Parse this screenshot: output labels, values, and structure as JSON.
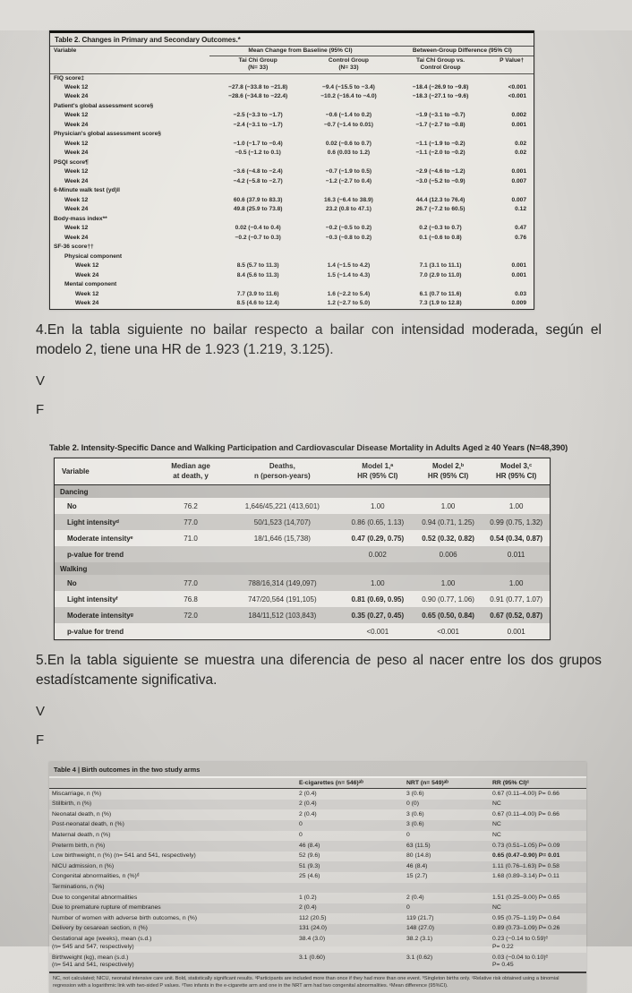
{
  "colors": {
    "paper": "#d6d4d0",
    "table_bg": "#e9e7e2",
    "band_gray": "#c9c7c3",
    "ink": "#23221f"
  },
  "table1": {
    "title": "Table 2. Changes in Primary and Secondary Outcomes.*",
    "col_headers": {
      "variable": "Variable",
      "group1": "Mean Change from Baseline (95% CI)",
      "group2": "Between-Group Difference (95% CI)",
      "tai_chi": "Tai Chi Group\n(N= 33)",
      "control": "Control Group\n(N= 33)",
      "diff": "Tai Chi Group vs.\nControl Group",
      "p": "P Value†"
    },
    "rows": [
      {
        "label": "FIQ score‡",
        "indent": 0
      },
      {
        "label": "Week 12",
        "indent": 1,
        "tc": "−27.8 (−33.8 to −21.8)",
        "ctrl": "−9.4 (−15.5 to −3.4)",
        "diff": "−18.4 (−26.9 to −9.8)",
        "p": "<0.001"
      },
      {
        "label": "Week 24",
        "indent": 1,
        "tc": "−28.6 (−34.8 to −22.4)",
        "ctrl": "−10.2 (−16.4 to −4.0)",
        "diff": "−18.3 (−27.1 to −9.6)",
        "p": "<0.001"
      },
      {
        "label": "Patient's global assessment score§",
        "indent": 0
      },
      {
        "label": "Week 12",
        "indent": 1,
        "tc": "−2.5 (−3.3 to −1.7)",
        "ctrl": "−0.6 (−1.4 to 0.2)",
        "diff": "−1.9 (−3.1 to −0.7)",
        "p": "0.002"
      },
      {
        "label": "Week 24",
        "indent": 1,
        "tc": "−2.4 (−3.1 to −1.7)",
        "ctrl": "−0.7 (−1.4 to 0.01)",
        "diff": "−1.7 (−2.7 to −0.8)",
        "p": "0.001"
      },
      {
        "label": "Physician's global assessment score§",
        "indent": 0
      },
      {
        "label": "Week 12",
        "indent": 1,
        "tc": "−1.0 (−1.7 to −0.4)",
        "ctrl": "0.02 (−0.6 to 0.7)",
        "diff": "−1.1 (−1.9 to −0.2)",
        "p": "0.02"
      },
      {
        "label": "Week 24",
        "indent": 1,
        "tc": "−0.5 (−1.2 to 0.1)",
        "ctrl": "0.6 (0.03 to 1.2)",
        "diff": "−1.1 (−2.0 to −0.2)",
        "p": "0.02"
      },
      {
        "label": "PSQI score¶",
        "indent": 0
      },
      {
        "label": "Week 12",
        "indent": 1,
        "tc": "−3.6 (−4.8 to −2.4)",
        "ctrl": "−0.7 (−1.9 to 0.5)",
        "diff": "−2.9 (−4.6 to −1.2)",
        "p": "0.001"
      },
      {
        "label": "Week 24",
        "indent": 1,
        "tc": "−4.2 (−5.8 to −2.7)",
        "ctrl": "−1.2 (−2.7 to 0.4)",
        "diff": "−3.0 (−5.2 to −0.9)",
        "p": "0.007"
      },
      {
        "label": "6-Minute walk test (yd)‖",
        "indent": 0
      },
      {
        "label": "Week 12",
        "indent": 1,
        "tc": "60.6 (37.9 to 83.3)",
        "ctrl": "16.3 (−6.4 to 38.9)",
        "diff": "44.4 (12.3 to 76.4)",
        "p": "0.007"
      },
      {
        "label": "Week 24",
        "indent": 1,
        "tc": "49.8 (25.9 to 73.8)",
        "ctrl": "23.2 (0.8 to 47.1)",
        "diff": "26.7 (−7.2 to 60.5)",
        "p": "0.12"
      },
      {
        "label": "Body-mass index**",
        "indent": 0
      },
      {
        "label": "Week 12",
        "indent": 1,
        "tc": "0.02 (−0.4 to 0.4)",
        "ctrl": "−0.2 (−0.5 to 0.2)",
        "diff": "0.2 (−0.3 to 0.7)",
        "p": "0.47"
      },
      {
        "label": "Week 24",
        "indent": 1,
        "tc": "−0.2 (−0.7 to 0.3)",
        "ctrl": "−0.3 (−0.8 to 0.2)",
        "diff": "0.1 (−0.6 to 0.8)",
        "p": "0.76"
      },
      {
        "label": "SF-36 score††",
        "indent": 0
      },
      {
        "label": "Physical component",
        "indent": 1
      },
      {
        "label": "Week 12",
        "indent": 2,
        "tc": "8.5 (5.7 to 11.3)",
        "ctrl": "1.4 (−1.5 to 4.2)",
        "diff": "7.1 (3.1 to 11.1)",
        "p": "0.001"
      },
      {
        "label": "Week 24",
        "indent": 2,
        "tc": "8.4 (5.6 to 11.3)",
        "ctrl": "1.5 (−1.4 to 4.3)",
        "diff": "7.0 (2.9 to 11.0)",
        "p": "0.001"
      },
      {
        "label": "Mental component",
        "indent": 1
      },
      {
        "label": "Week 12",
        "indent": 2,
        "tc": "7.7 (3.9 to 11.6)",
        "ctrl": "1.6 (−2.2 to 5.4)",
        "diff": "6.1 (0.7 to 11.6)",
        "p": "0.03"
      },
      {
        "label": "Week 24",
        "indent": 2,
        "tc": "8.5 (4.6 to 12.4)",
        "ctrl": "1.2 (−2.7 to 5.0)",
        "diff": "7.3 (1.9 to 12.8)",
        "p": "0.009"
      }
    ]
  },
  "questions": {
    "q4": {
      "text": "4.En la tabla siguiente no bailar respecto a bailar con intensidad moderada, según el modelo 2, tiene una HR de 1.923 (1.219, 3.125).",
      "true_label": "V",
      "false_label": "F"
    },
    "q5": {
      "text": "5.En la tabla siguiente se muestra una diferencia de peso al nacer entre los dos grupos estadístcamente significativa.",
      "true_label": "V",
      "false_label": "F"
    }
  },
  "table2": {
    "label": "Table 2.",
    "title": "Intensity-Specific Dance and Walking Participation and Cardiovascular Disease Mortality in Adults Aged ≥ 40 Years (N=48,390)",
    "headers": [
      "Variable",
      "Median age\nat death, y",
      "Deaths,\nn (person-years)",
      "Model 1,ᵃ\nHR (95% CI)",
      "Model 2,ᵇ\nHR (95% CI)",
      "Model 3,ᶜ\nHR (95% CI)"
    ],
    "rows": [
      {
        "type": "section",
        "label": "Dancing"
      },
      {
        "label": "No",
        "age": "76.2",
        "deaths": "1,646/45,221 (413,601)",
        "m1": "1.00",
        "m2": "1.00",
        "m3": "1.00",
        "shade": false
      },
      {
        "label": "Light intensityᵈ",
        "age": "77.0",
        "deaths": "50/1,523 (14,707)",
        "m1": "0.86 (0.65, 1.13)",
        "m2": "0.94 (0.71, 1.25)",
        "m3": "0.99 (0.75, 1.32)",
        "shade": true
      },
      {
        "label": "Moderate intensityᵉ",
        "age": "71.0",
        "deaths": "18/1,646 (15,738)",
        "m1": "0.47 (0.29, 0.75)",
        "m2": "0.52 (0.32, 0.82)",
        "m3": "0.54 (0.34, 0.87)",
        "bold": [
          "m1",
          "m2",
          "m3"
        ],
        "shade": false
      },
      {
        "label": "p-value for trend",
        "age": "",
        "deaths": "",
        "m1": "0.002",
        "m2": "0.006",
        "m3": "0.011",
        "shade": true
      },
      {
        "type": "section",
        "label": "Walking"
      },
      {
        "label": "No",
        "age": "77.0",
        "deaths": "788/16,314 (149,097)",
        "m1": "1.00",
        "m2": "1.00",
        "m3": "1.00",
        "shade": true
      },
      {
        "label": "Light intensityᶠ",
        "age": "76.8",
        "deaths": "747/20,564 (191,105)",
        "m1": "0.81 (0.69, 0.95)",
        "m2": "0.90 (0.77, 1.06)",
        "m3": "0.91 (0.77, 1.07)",
        "bold": [
          "m1"
        ],
        "shade": false
      },
      {
        "label": "Moderate intensityᵍ",
        "age": "72.0",
        "deaths": "184/11,512 (103,843)",
        "m1": "0.35 (0.27, 0.45)",
        "m2": "0.65 (0.50, 0.84)",
        "m3": "0.67 (0.52, 0.87)",
        "bold": [
          "m1",
          "m2",
          "m3"
        ],
        "shade": true
      },
      {
        "label": "p-value for trend",
        "age": "",
        "deaths": "",
        "m1": "<0.001",
        "m2": "<0.001",
        "m3": "0.001",
        "shade": false
      }
    ]
  },
  "table4": {
    "title": "Table 4 | Birth outcomes in the two study arms",
    "headers": {
      "blank": "",
      "e": "E-cigarettes (n= 546)ᵃᵇ",
      "nrt": "NRT (n= 549)ᵃᵇ",
      "rr": "RR (95% CI)ᶜ"
    },
    "rows": [
      {
        "label": "Miscarriage, n (%)",
        "e": "2 (0.4)",
        "nrt": "3 (0.6)",
        "rr": "0.67 (0.11–4.00) P= 0.66"
      },
      {
        "label": "Stillbirth, n (%)",
        "e": "2 (0.4)",
        "nrt": "0 (0)",
        "rr": "NC"
      },
      {
        "label": "Neonatal death, n (%)",
        "e": "2 (0.4)",
        "nrt": "3 (0.6)",
        "rr": "0.67 (0.11–4.00) P= 0.66"
      },
      {
        "label": "Post-neonatal death, n (%)",
        "e": "0",
        "nrt": "3 (0.6)",
        "rr": "NC"
      },
      {
        "label": "Maternal death, n (%)",
        "e": "0",
        "nrt": "0",
        "rr": "NC"
      },
      {
        "label": "Preterm birth, n (%)",
        "e": "46 (8.4)",
        "nrt": "63 (11.5)",
        "rr": "0.73 (0.51–1.05) P= 0.09"
      },
      {
        "label": "Low birthweight, n (%) (n= 541 and 541, respectively)",
        "e": "52 (9.6)",
        "nrt": "80 (14.8)",
        "rr": "0.65 (0.47–0.90) P= 0.01",
        "rr_bold": true
      },
      {
        "label": "NICU admission, n (%)",
        "e": "51 (9.3)",
        "nrt": "46 (8.4)",
        "rr": "1.11 (0.76–1.63) P= 0.58"
      },
      {
        "label": "Congenital abnormalities, n (%)ᵈ",
        "e": "25 (4.6)",
        "nrt": "15 (2.7)",
        "rr": "1.68 (0.89–3.14) P= 0.11"
      },
      {
        "label": "Terminations, n (%)",
        "e": "",
        "nrt": "",
        "rr": ""
      },
      {
        "label": "Due to congenital abnormalities",
        "e": "1 (0.2)",
        "nrt": "2 (0.4)",
        "rr": "1.51 (0.25–9.00) P= 0.65"
      },
      {
        "label": "Due to premature rupture of membranes",
        "e": "2 (0.4)",
        "nrt": "0",
        "rr": "NC"
      },
      {
        "label": "Number of women with adverse birth outcomes, n (%)",
        "e": "112 (20.5)",
        "nrt": "119 (21.7)",
        "rr": "0.95 (0.75–1.19) P= 0.64"
      },
      {
        "label": "Delivery by cesarean section, n (%)",
        "e": "131 (24.0)",
        "nrt": "148 (27.0)",
        "rr": "0.89 (0.73–1.09) P= 0.26"
      },
      {
        "label": "Gestational age (weeks), mean (s.d.)\n(n= 545 and 547, respectively)",
        "e": "38.4 (3.0)",
        "nrt": "38.2 (3.1)",
        "rr": "0.23 (−0.14 to 0.59)ᵉ\nP= 0.22"
      },
      {
        "label": "Birthweight (kg), mean (s.d.)\n(n= 541 and 541, respectively)",
        "e": "3.1 (0.60)",
        "nrt": "3.1 (0.62)",
        "rr": "0.03 (−0.04 to 0.10)ᵉ\nP= 0.45"
      }
    ],
    "footnote": "NC, not calculated; NICU, neonatal intensive care unit. Bold, statistically significant results. ᵃParticipants are included more than once if they had more than one event. ᵇSingleton births only. ᶜRelative risk obtained using a binomial regression with a logarithmic link with two-sided P values. ᵈTwo infants in the e-cigarette arm and one in the NRT arm had two congenital abnormalities. ᵉMean difference (95%CI)."
  }
}
